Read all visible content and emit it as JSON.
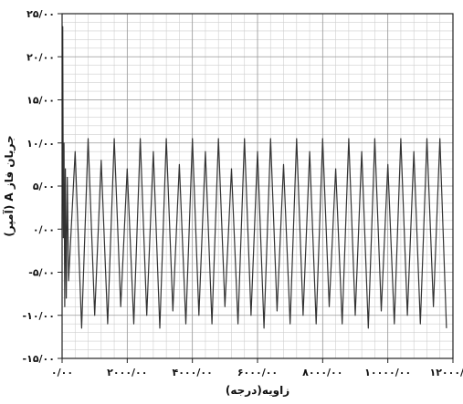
{
  "chart_data": {
    "type": "line",
    "title": "",
    "xlabel": "زاویه(درجه)",
    "ylabel": "جریان فاز A (آمپر)",
    "xlim": [
      0,
      12000
    ],
    "ylim": [
      -15,
      25
    ],
    "grid": true,
    "x_ticks": [
      0,
      2000,
      4000,
      6000,
      8000,
      10000,
      12000
    ],
    "y_ticks": [
      -15,
      -10,
      -5,
      0,
      5,
      10,
      15,
      20,
      25
    ],
    "x_tick_labels": [
      "۰/۰۰",
      "۲۰۰۰/۰۰",
      "۴۰۰۰/۰۰",
      "۶۰۰۰/۰۰",
      "۸۰۰۰/۰۰",
      "۱۰۰۰۰/۰۰",
      "۱۲۰۰۰/۰۰"
    ],
    "y_tick_labels": [
      "-۱۵/۰۰",
      "-۱۰/۰۰",
      "-۵/۰۰",
      "۰/۰۰",
      "۵/۰۰",
      "۱۰/۰۰",
      "۱۵/۰۰",
      "۲۰/۰۰",
      "۲۵/۰۰"
    ],
    "series": [
      {
        "name": "",
        "color": "#333333",
        "x": [
          0,
          20,
          40,
          60,
          80,
          100,
          130,
          160,
          200,
          400,
          600,
          800,
          1000,
          1200,
          1400,
          1600,
          1800,
          2000,
          2200,
          2400,
          2600,
          2800,
          3000,
          3200,
          3400,
          3600,
          3800,
          4000,
          4200,
          4400,
          4600,
          4800,
          5000,
          5200,
          5400,
          5600,
          5800,
          6000,
          6200,
          6400,
          6600,
          6800,
          7000,
          7200,
          7400,
          7600,
          7800,
          8000,
          8200,
          8400,
          8600,
          8800,
          9000,
          9200,
          9400,
          9600,
          9800,
          10000,
          10200,
          10400,
          10600,
          10800,
          11000,
          11200,
          11400,
          11600,
          11800
        ],
        "y": [
          0,
          23.5,
          -1,
          10,
          -9,
          7,
          -8,
          6,
          -6,
          9,
          -11.5,
          10.5,
          -10,
          8,
          -11,
          10.5,
          -9,
          7,
          -11,
          10.5,
          -10,
          9,
          -11.5,
          10.5,
          -9.5,
          7.5,
          -11,
          10.5,
          -10,
          9,
          -11,
          10.5,
          -9,
          7,
          -11,
          10.5,
          -10,
          9,
          -11.5,
          10.5,
          -9.5,
          7.5,
          -11,
          10.5,
          -10,
          9,
          -11,
          10.5,
          -9,
          7,
          -11,
          10.5,
          -10,
          9,
          -11.5,
          10.5,
          -9.5,
          7.5,
          -11,
          10.5,
          -10,
          9,
          -11,
          10.5,
          -9,
          10.5,
          -11.5
        ]
      }
    ]
  }
}
